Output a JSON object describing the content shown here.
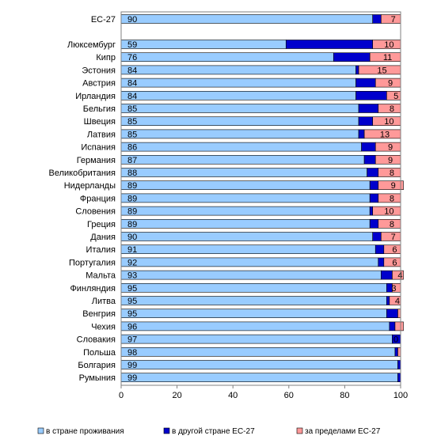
{
  "chart_data": {
    "type": "bar",
    "orientation": "horizontal",
    "stacked": true,
    "categories": [
      "ЕС-27",
      "Люксембург",
      "Кипр",
      "Эстония",
      "Австрия",
      "Ирландия",
      "Бельгия",
      "Швеция",
      "Латвия",
      "Испания",
      "Германия",
      "Великобритания",
      "Нидерланды",
      "Франция",
      "Словения",
      "Греция",
      "Дания",
      "Италия",
      "Португалия",
      "Мальта",
      "Финляндия",
      "Литва",
      "Венгрия",
      "Чехия",
      "Словакия",
      "Польша",
      "Болгария",
      "Румыния"
    ],
    "series": [
      {
        "name": "в стране проживания",
        "color": "#99CCFF",
        "values": [
          90,
          59,
          76,
          84,
          84,
          84,
          85,
          85,
          85,
          86,
          87,
          88,
          89,
          89,
          89,
          89,
          90,
          91,
          92,
          93,
          95,
          95,
          95,
          96,
          97,
          98,
          99,
          99
        ]
      },
      {
        "name": "в другой стране ЕС-27",
        "color": "#0000CC",
        "values": [
          3,
          31,
          13,
          1,
          7,
          11,
          7,
          5,
          2,
          5,
          4,
          4,
          3,
          3,
          1,
          3,
          3,
          3,
          2,
          4,
          2,
          1,
          4,
          2,
          3,
          1,
          1,
          1
        ]
      },
      {
        "name": "за пределами ЕС-27",
        "color": "#FF9999",
        "values": [
          7,
          10,
          11,
          15,
          9,
          5,
          8,
          10,
          13,
          9,
          9,
          8,
          9,
          8,
          10,
          8,
          7,
          6,
          6,
          4,
          3,
          4,
          1,
          3,
          0,
          1,
          0,
          0
        ]
      }
    ],
    "data_labels": {
      "first_series": [
        "90",
        "59",
        "76",
        "84",
        "84",
        "84",
        "85",
        "85",
        "85",
        "86",
        "87",
        "88",
        "89",
        "89",
        "89",
        "89",
        "90",
        "91",
        "92",
        "93",
        "95",
        "95",
        "95",
        "96",
        "97",
        "98",
        "99",
        "99"
      ],
      "third_series": [
        "7",
        "10",
        "11",
        "15",
        "9",
        "5",
        "8",
        "10",
        "13",
        "9",
        "9",
        "8",
        "9",
        "8",
        "10",
        "8",
        "7",
        "6",
        "6",
        "4",
        "3",
        "4",
        "",
        "",
        "0",
        "",
        "",
        ""
      ]
    },
    "xlim": [
      0,
      100
    ],
    "xticks": [
      "0",
      "20",
      "40",
      "60",
      "80",
      "100"
    ],
    "grid": false,
    "legend": "bottom"
  }
}
